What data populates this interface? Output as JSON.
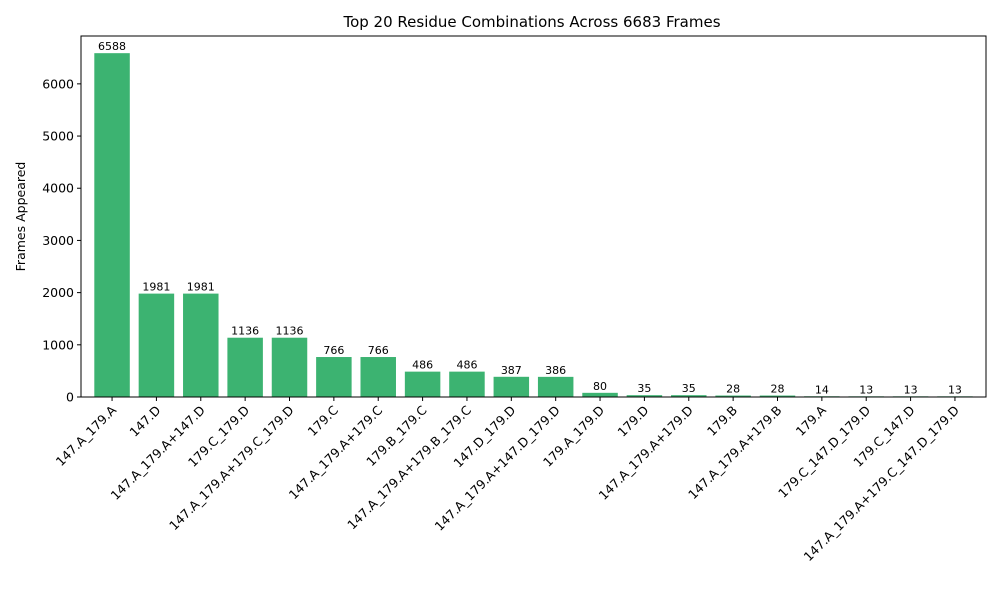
{
  "chart_data": {
    "type": "bar",
    "title": "Top 20 Residue Combinations Across 6683 Frames",
    "xlabel": "",
    "ylabel": "Frames Appeared",
    "categories": [
      "147.A_179.A",
      "147.D",
      "147.A_179.A+147.D",
      "179.C_179.D",
      "147.A_179.A+179.C_179.D",
      "179.C",
      "147.A_179.A+179.C",
      "179.B_179.C",
      "147.A_179.A+179.B_179.C",
      "147.D_179.D",
      "147.A_179.A+147.D_179.D",
      "179.A_179.D",
      "179.D",
      "147.A_179.A+179.D",
      "179.B",
      "147.A_179.A+179.B",
      "179.A",
      "179.C_147.D_179.D",
      "179.C_147.D",
      "147.A_179.A+179.C_147.D_179.D"
    ],
    "values": [
      6588,
      1981,
      1981,
      1136,
      1136,
      766,
      766,
      486,
      486,
      387,
      386,
      80,
      35,
      35,
      28,
      28,
      14,
      13,
      13,
      13
    ],
    "data_labels": [
      "6588",
      "1981",
      "1981",
      "1136",
      "1136",
      "766",
      "766",
      "486",
      "486",
      "387",
      "386",
      "80",
      "35",
      "35",
      "28",
      "28",
      "14",
      "13",
      "13",
      "13"
    ],
    "ylim": [
      0,
      6917
    ],
    "yticks": [
      0,
      1000,
      2000,
      3000,
      4000,
      5000,
      6000
    ],
    "ytick_labels": [
      "0",
      "1000",
      "2000",
      "3000",
      "4000",
      "5000",
      "6000"
    ],
    "grid": false,
    "legend": "none",
    "bar_color": "#3cb371"
  }
}
